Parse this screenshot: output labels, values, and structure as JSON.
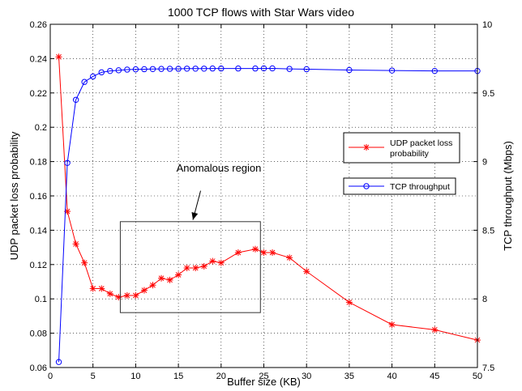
{
  "chart_data": {
    "type": "line",
    "title": "1000 TCP flows with Star Wars video",
    "xlabel": "Buffer size (KB)",
    "ylabel_left": "UDP packet loss probability",
    "ylabel_right": "TCP throughput (Mbps)",
    "xlim": [
      0,
      50
    ],
    "ylim_left": [
      0.06,
      0.26
    ],
    "ylim_right": [
      7.5,
      10
    ],
    "x_ticks": [
      0,
      5,
      10,
      15,
      20,
      25,
      30,
      35,
      40,
      45,
      50
    ],
    "y_ticks_left": [
      0.06,
      0.08,
      0.1,
      0.12,
      0.14,
      0.16,
      0.18,
      0.2,
      0.22,
      0.24,
      0.26
    ],
    "y_ticks_right": [
      7.5,
      8,
      8.5,
      9,
      9.5,
      10
    ],
    "grid": true,
    "series": [
      {
        "name": "UDP packet loss probability",
        "axis": "left",
        "color": "#ff0000",
        "marker": "star",
        "x": [
          1,
          2,
          3,
          4,
          5,
          6,
          7,
          8,
          9,
          10,
          11,
          12,
          13,
          14,
          15,
          16,
          17,
          18,
          19,
          20,
          22,
          24,
          25,
          26,
          28,
          30,
          35,
          40,
          45,
          50
        ],
        "y": [
          0.241,
          0.151,
          0.132,
          0.121,
          0.106,
          0.106,
          0.103,
          0.101,
          0.102,
          0.102,
          0.105,
          0.108,
          0.112,
          0.111,
          0.114,
          0.118,
          0.118,
          0.119,
          0.122,
          0.121,
          0.127,
          0.129,
          0.127,
          0.127,
          0.124,
          0.116,
          0.098,
          0.085,
          0.082,
          0.076
        ]
      },
      {
        "name": "TCP throughput",
        "axis": "right",
        "color": "#0000ff",
        "marker": "circle",
        "x": [
          1,
          2,
          3,
          4,
          5,
          6,
          7,
          8,
          9,
          10,
          11,
          12,
          13,
          14,
          15,
          16,
          17,
          18,
          19,
          20,
          22,
          24,
          25,
          26,
          28,
          30,
          35,
          40,
          45,
          50
        ],
        "y": [
          7.54,
          8.99,
          9.45,
          9.58,
          9.62,
          9.65,
          9.66,
          9.665,
          9.67,
          9.672,
          9.673,
          9.674,
          9.675,
          9.676,
          9.676,
          9.677,
          9.677,
          9.677,
          9.678,
          9.678,
          9.678,
          9.678,
          9.679,
          9.679,
          9.675,
          9.673,
          9.667,
          9.663,
          9.66,
          9.66
        ]
      }
    ],
    "legend": [
      {
        "label": "UDP packet loss\nprobability",
        "series": 0
      },
      {
        "label": "TCP throughput",
        "series": 1
      }
    ],
    "annotation": {
      "text": "Anomalous region",
      "box_x": [
        8.2,
        24.6
      ],
      "box_y": [
        0.092,
        0.145
      ],
      "arrow_from": [
        17.6,
        0.163
      ],
      "arrow_to": [
        16.7,
        0.146
      ]
    }
  }
}
